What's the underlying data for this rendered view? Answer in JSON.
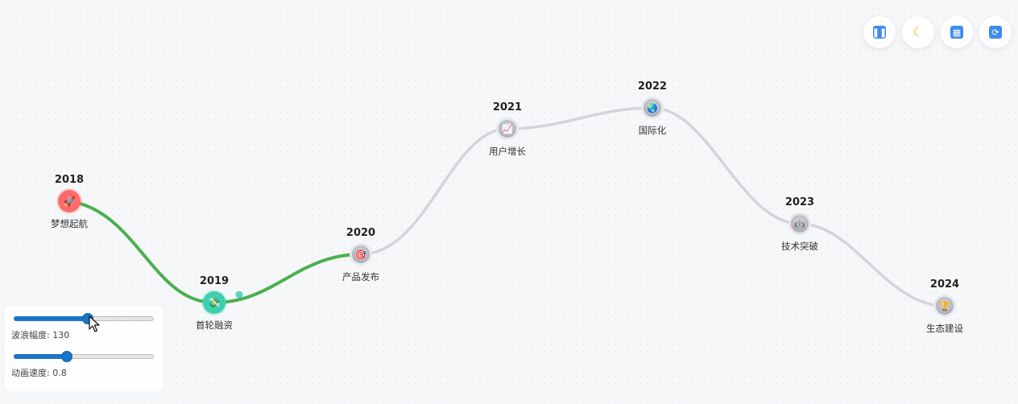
{
  "timeline": {
    "events": [
      {
        "year": "2018",
        "label": "梦想起航",
        "icon": "rocket-icon",
        "emoji": "🚀",
        "active": true,
        "color": "#ff6b6b"
      },
      {
        "year": "2019",
        "label": "首轮融资",
        "icon": "money-icon",
        "emoji": "💸",
        "active": true,
        "color": "#3ccfb0"
      },
      {
        "year": "2020",
        "label": "产品发布",
        "icon": "target-icon",
        "emoji": "🎯",
        "active": false,
        "color": "#b9bcc4"
      },
      {
        "year": "2021",
        "label": "用户增长",
        "icon": "chart-increasing-icon",
        "emoji": "📈",
        "active": false,
        "color": "#b9bcc4"
      },
      {
        "year": "2022",
        "label": "国际化",
        "icon": "globe-icon",
        "emoji": "🌏",
        "active": false,
        "color": "#b9bcc4"
      },
      {
        "year": "2023",
        "label": "技术突破",
        "icon": "robot-icon",
        "emoji": "🤖",
        "active": false,
        "color": "#b9bcc4"
      },
      {
        "year": "2024",
        "label": "生态建设",
        "icon": "trophy-icon",
        "emoji": "🏆",
        "active": false,
        "color": "#b9bcc4"
      }
    ],
    "progress_color": "#4caf50",
    "pending_color": "#d2d4da"
  },
  "toolbar": {
    "buttons": [
      {
        "name": "pause-button",
        "icon": "pause-icon",
        "glyph": "⏸"
      },
      {
        "name": "theme-button",
        "icon": "moon-icon",
        "glyph": "🌙"
      },
      {
        "name": "layout-button",
        "icon": "qr-grid-icon",
        "glyph": "▦"
      },
      {
        "name": "refresh-button",
        "icon": "refresh-icon",
        "glyph": "🔄"
      }
    ]
  },
  "controls": {
    "amplitude": {
      "label": "波浪幅度: 130",
      "fraction": 0.53
    },
    "speed": {
      "label": "动画速度: 0.8",
      "fraction": 0.38
    }
  }
}
